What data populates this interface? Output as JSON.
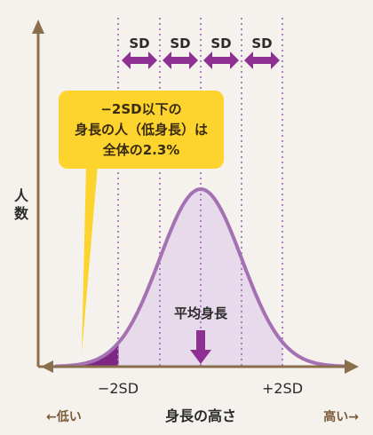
{
  "colors": {
    "background": "#f5f2ee",
    "axis": "#8a6f4c",
    "curve": "#a471b3",
    "curve_fill": "#e7daea",
    "tail_fill": "#7d2785",
    "arrow": "#8e2f94",
    "callout": "#fcd42d",
    "sd_line": "#b07ec0"
  },
  "sd_labels": [
    "SD",
    "SD",
    "SD",
    "SD"
  ],
  "callout": {
    "line1": "−2SD以下の",
    "line2": "身長の人（低身長）は",
    "line3": "全体の2.3%"
  },
  "y_axis_label": [
    "人",
    "数"
  ],
  "mean_label": "平均身長",
  "tick_minus2sd": "−2SD",
  "tick_plus2sd": "+2SD",
  "x_axis_label": "身長の高さ",
  "left_hint": "←低い",
  "right_hint": "高い→",
  "short_tail_percent": 2.3
}
